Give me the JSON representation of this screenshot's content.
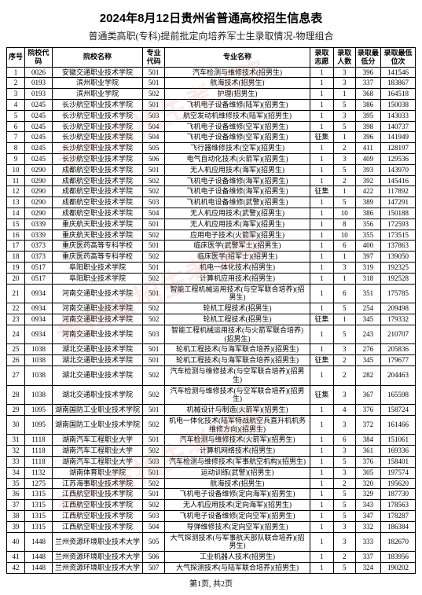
{
  "title": "2024年8月12日贵州省普通高校招生信息表",
  "subtitle": "普通类高职(专科)提前批定向培养军士生录取情况-物理组合",
  "watermark_text": "贵州省招生考试院",
  "watermark_color": "rgba(220,80,80,0.12)",
  "columns": [
    "序号",
    "院校代码",
    "院校名称",
    "专业代码",
    "专业名称",
    "录取志愿",
    "录取人数",
    "录取最低分",
    "录取最低位次"
  ],
  "rows": [
    [
      "1",
      "0026",
      "安徽交通职业技术学院",
      "501",
      "汽车检测与维修技术(招男生)",
      "1",
      "3",
      "396",
      "141546"
    ],
    [
      "2",
      "0193",
      "滨州职业学院",
      "501",
      "航海技术(招男生)",
      "1",
      "3",
      "337",
      "183867"
    ],
    [
      "3",
      "0193",
      "滨州职业学院",
      "502",
      "护理(招男生)",
      "1",
      "1",
      "368",
      "164518"
    ],
    [
      "4",
      "0245",
      "长沙航空职业技术学院",
      "501",
      "飞机电子设备维修(陆军)(招男生)",
      "1",
      "5",
      "386",
      "150038"
    ],
    [
      "5",
      "0245",
      "长沙航空职业技术学院",
      "503",
      "航空发动机维修技术(陆军)(招男生)",
      "1",
      "3",
      "395",
      "143033"
    ],
    [
      "6",
      "0245",
      "长沙航空职业技术学院",
      "504",
      "飞机电子设备维修(空军)(招男生)",
      "1",
      "5",
      "398",
      "140737"
    ],
    [
      "7",
      "0245",
      "长沙航空职业技术学院",
      "504",
      "飞机电子设备维修(空军)(招男生)",
      "征集",
      "1",
      "396",
      "141949"
    ],
    [
      "8",
      "0245",
      "长沙航空职业技术学院",
      "505",
      "飞行器维修技术(空军)(招男生)",
      "1",
      "2",
      "411",
      "128197"
    ],
    [
      "9",
      "0245",
      "长沙航空职业技术学院",
      "506",
      "电气自动化技术(火箭军)(招男生)",
      "1",
      "3",
      "409",
      "129536"
    ],
    [
      "10",
      "0290",
      "成都航空职业技术学院",
      "501",
      "无人机应用技术(海军)(招男生)",
      "1",
      "5",
      "393",
      "143970"
    ],
    [
      "11",
      "0290",
      "成都航空职业技术学院",
      "502",
      "飞机电子设备维修(海军)(招男生)",
      "1",
      "2",
      "392",
      "145416"
    ],
    [
      "12",
      "0290",
      "成都航空职业技术学院",
      "502",
      "飞机电子设备维修(海军)(招男生)",
      "征集",
      "1",
      "422",
      "117892"
    ],
    [
      "13",
      "0290",
      "成都航空职业技术学院",
      "503",
      "飞机机电设备维修(武警)(招男生)",
      "1",
      "5",
      "389",
      "147291"
    ],
    [
      "14",
      "0290",
      "成都航空职业技术学院",
      "504",
      "无人机应用技术(武警)(招男生)",
      "1",
      "10",
      "386",
      "150188"
    ],
    [
      "15",
      "0339",
      "重庆航天职业技术学院",
      "501",
      "无人机应用技术(海军)(招男生)",
      "1",
      "8",
      "356",
      "172593"
    ],
    [
      "16",
      "0339",
      "重庆航天职业技术学院",
      "502",
      "应用电子技术(火箭军)(招男生)",
      "1",
      "10",
      "355",
      "173515"
    ],
    [
      "17",
      "0373",
      "重庆医药高等专科学校",
      "501",
      "临床医学(武警军士)(招男生)",
      "1",
      "6",
      "400",
      "137863"
    ],
    [
      "18",
      "0373",
      "重庆医药高等专科学校",
      "502",
      "临床医学(招军士)(招男生)",
      "1",
      "1",
      "397",
      "139050"
    ],
    [
      "19",
      "0517",
      "阜阳职业技术学院",
      "501",
      "机电一体化技术(招男生)",
      "1",
      "3",
      "319",
      "192325"
    ],
    [
      "20",
      "0517",
      "阜阳职业技术学院",
      "502",
      "计算机应用技术(招男生)",
      "1",
      "1",
      "318",
      "192528"
    ],
    [
      "21",
      "0934",
      "河南交通职业技术学院",
      "501",
      "智能工程机械运用技术(与空军联合培养)(招男生)",
      "1",
      "6",
      "351",
      "175785"
    ],
    [
      "22",
      "0934",
      "河南交通职业技术学院",
      "502",
      "轮机工程技术(招男生)",
      "1",
      "5",
      "254",
      "209498"
    ],
    [
      "23",
      "0934",
      "河南交通职业技术学院",
      "502",
      "轮机工程技术(招男生)",
      "征集",
      "1",
      "345",
      "179332"
    ],
    [
      "24",
      "0934",
      "河南交通职业技术学院",
      "503",
      "智能工程机械运用技术(与火箭军联合培养)(招男生)",
      "1",
      "5",
      "243",
      "210707"
    ],
    [
      "25",
      "1038",
      "湖北交通职业技术学院",
      "501",
      "轮机工程技术(与海军联合培养)(招男生)",
      "1",
      "3",
      "276",
      "205836"
    ],
    [
      "26",
      "1038",
      "湖北交通职业技术学院",
      "501",
      "轮机工程技术(与海军联合培养)(招男生)",
      "征集",
      "2",
      "345",
      "179677"
    ],
    [
      "27",
      "1038",
      "湖北交通职业技术学院",
      "502",
      "汽车检测与维修技术(与空军联合培养)(招男生)",
      "1",
      "2",
      "282",
      "204463"
    ],
    [
      "28",
      "1038",
      "湖北交通职业技术学院",
      "502",
      "汽车检测与维修技术(与空军联合培养)(招男生)",
      "征集",
      "3",
      "367",
      "165598"
    ],
    [
      "29",
      "1095",
      "湖南国防工业职业技术学院",
      "501",
      "机械设计与制造(火箭军)(招男生)",
      "1",
      "4",
      "376",
      "158724"
    ],
    [
      "30",
      "1095",
      "湖南国防工业职业技术学院",
      "502",
      "机电一体化技术(陆军特战航空兵直升机机务维修方向)(招男生)",
      "1",
      "3",
      "372",
      "161466"
    ],
    [
      "31",
      "1118",
      "湖南汽车工程职业大学",
      "501",
      "汽车检测与维修技术(火箭军)(招男生)",
      "1",
      "6",
      "384",
      "151061"
    ],
    [
      "32",
      "1118",
      "湖南汽车工程职业大学",
      "502",
      "计算机网络技术(招男生)",
      "1",
      "3",
      "361",
      "169336"
    ],
    [
      "33",
      "1118",
      "湖南汽车工程职业大学",
      "503",
      "汽车检测与维修技术(军事航空机构)(招男生)",
      "1",
      "5",
      "376",
      "158401"
    ],
    [
      "34",
      "1132",
      "湖南体育职业学院",
      "501",
      "运动训练(武警)(招男生)",
      "1",
      "3",
      "305",
      "197574"
    ],
    [
      "35",
      "1275",
      "江苏海事职业技术学院",
      "502",
      "航海技术(招男生)",
      "1",
      "2",
      "320",
      "195620"
    ],
    [
      "36",
      "1315",
      "江西航空职业技术学院",
      "501",
      "飞机电子设备维修(定向海军)(招男生)",
      "1",
      "5",
      "329",
      "187730"
    ],
    [
      "37",
      "1315",
      "江西航空职业技术学院",
      "502",
      "无人机应用技术(定向海军)(招男生)",
      "1",
      "5",
      "343",
      "178563"
    ],
    [
      "38",
      "1315",
      "江西航空职业技术学院",
      "503",
      "飞机电子设备维修(定向空军)(招男生)",
      "1",
      "5",
      "347",
      "178287"
    ],
    [
      "39",
      "1315",
      "江西航空职业技术学院",
      "504",
      "导弹维修技术(定向空军)(招男生)",
      "1",
      "3",
      "332",
      "186384"
    ],
    [
      "40",
      "1448",
      "兰州资源环境职业技术大学",
      "505",
      "大气探测技术(与军事航天部队联合培养)(招男生)",
      "1",
      "3",
      "333",
      "182670"
    ],
    [
      "41",
      "1448",
      "兰州资源环境职业技术大学",
      "506",
      "工业机器人技术(招男生)",
      "1",
      "2",
      "337",
      "183956"
    ],
    [
      "42",
      "1448",
      "兰州资源环境职业技术大学",
      "507",
      "大气探测技术(与陆军联合培养)(招男生)",
      "1",
      "5",
      "324",
      "190202"
    ]
  ],
  "footer": "第1页, 共2页"
}
